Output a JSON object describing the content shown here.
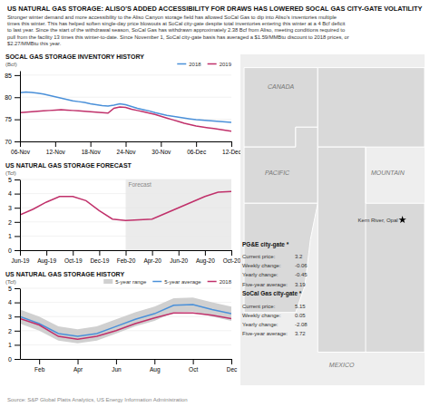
{
  "title": "US NATURAL GAS STORAGE: ALISO'S ADDED ACCESSIBILITY FOR DRAWS HAS LOWERED SOCAL GAS CITY-GATE VOLATILITY",
  "subtitle": [
    "Stronger winter demand and more accessibility to the Aliso Canyon storage field has allowed SoCal Gas to dip into Aliso's inventories multiple",
    "times this winter. This has helped soften single-day price blowouts at SoCal city-gate despite total inventories entering this winter at a 4 Bcf deficit",
    "to last year. Since the start of the withdrawal season, SoCal Gas has withdrawn approximately 2.38 Bcf from Aliso, meeting conditions required to",
    "pull from the facility 13 times this winter-to-date. Since November 1, SoCal city-gate basis has averaged a $1.59/MMBtu discount to 2018 prices, or",
    "$2.27/MMBtu this year."
  ],
  "source": "Source: S&P Global Platts Analytics, US Energy Information Administration",
  "chart_data": [
    {
      "type": "line",
      "title": "SOCAL GAS STORAGE INVENTORY HISTORY",
      "y_label": "(Bcf)",
      "categories": [
        "06-Nov",
        null,
        null,
        null,
        null,
        null,
        "12-Nov",
        null,
        null,
        null,
        null,
        null,
        "18-Nov",
        null,
        null,
        null,
        null,
        null,
        "24-Nov",
        null,
        null,
        null,
        null,
        null,
        "30-Nov",
        null,
        null,
        null,
        null,
        null,
        "06-Dec",
        null,
        null,
        null,
        null,
        null,
        "12-Dec"
      ],
      "series": [
        {
          "name": "2018",
          "color": "#4a90d9",
          "values": [
            81.0,
            81.2,
            81.1,
            80.9,
            80.7,
            80.4,
            80.1,
            79.8,
            79.5,
            79.2,
            79.0,
            78.8,
            78.5,
            78.3,
            78.1,
            78.0,
            78.2,
            78.5,
            78.3,
            77.9,
            77.5,
            77.2,
            76.9,
            76.5,
            76.2,
            75.9,
            75.7,
            75.5,
            75.3,
            75.1,
            74.9,
            74.8,
            74.7,
            74.6,
            74.5,
            74.4,
            74.3
          ]
        },
        {
          "name": "2019",
          "color": "#c0306a",
          "values": [
            76.5,
            76.6,
            76.7,
            76.8,
            76.9,
            77.0,
            77.1,
            77.2,
            77.1,
            77.0,
            76.9,
            76.8,
            76.7,
            76.6,
            76.5,
            76.4,
            77.5,
            77.8,
            77.7,
            77.3,
            77.0,
            76.7,
            76.4,
            76.1,
            75.7,
            75.3,
            74.9,
            74.5,
            74.1,
            73.8,
            73.5,
            73.3,
            73.1,
            72.9,
            72.7,
            72.5,
            72.3
          ]
        }
      ],
      "ylim": [
        70,
        86
      ],
      "yticks": [
        70,
        75,
        80,
        85
      ],
      "grid": true,
      "legend": "upper right"
    },
    {
      "type": "line",
      "title": "US NATURAL GAS STORAGE FORECAST",
      "y_label": "(Tcf)",
      "categories": [
        "Jun-19",
        null,
        "Aug-19",
        null,
        "Oct-19",
        null,
        "Dec-19",
        null,
        "Feb-20",
        null,
        "Apr-20",
        null,
        "Jun-20",
        null,
        "Aug-20",
        null,
        "Oct-20"
      ],
      "values": [
        2.5,
        2.9,
        3.4,
        3.8,
        3.8,
        3.5,
        2.8,
        2.2,
        2.1,
        2.15,
        2.2,
        2.6,
        3.0,
        3.4,
        3.8,
        4.1,
        4.15
      ],
      "color": "#c0306a",
      "ylim": [
        0,
        5
      ],
      "yticks": [
        0,
        1,
        2,
        3,
        4,
        5
      ],
      "grid": true,
      "annotations": [
        {
          "text": "Forecast",
          "from": "Feb-20",
          "color": "#ebebeb"
        }
      ]
    },
    {
      "type": "line",
      "title": "US NATURAL GAS STORAGE HISTORY",
      "y_label": "(Tcf)",
      "categories": [
        null,
        "Feb",
        null,
        "Apr",
        null,
        "Jun",
        null,
        "Aug",
        null,
        "Oct",
        null,
        "Dec"
      ],
      "series": [
        {
          "name": "5-year range",
          "type": "area",
          "color": "#d0d0d0",
          "low": [
            2.5,
            2.0,
            1.3,
            1.1,
            1.3,
            1.8,
            2.3,
            2.7,
            3.3,
            3.35,
            3.0,
            2.7
          ],
          "high": [
            3.5,
            3.0,
            2.3,
            2.1,
            2.3,
            2.8,
            3.3,
            3.7,
            4.3,
            4.35,
            4.0,
            3.7
          ]
        },
        {
          "name": "5-year average",
          "type": "line",
          "color": "#4a90d9",
          "values": [
            3.0,
            2.5,
            1.8,
            1.6,
            1.8,
            2.3,
            2.8,
            3.2,
            3.8,
            3.85,
            3.5,
            3.2
          ]
        },
        {
          "name": "2018",
          "type": "line",
          "color": "#c0306a",
          "values": [
            2.85,
            2.4,
            1.6,
            1.4,
            1.6,
            2.0,
            2.5,
            2.9,
            3.25,
            3.25,
            3.1,
            2.85
          ]
        }
      ],
      "ylim": [
        0,
        5
      ],
      "yticks": [
        0,
        1,
        2,
        3,
        4,
        5
      ],
      "grid": true,
      "legend": "upper right"
    }
  ],
  "annotations": [
    {
      "text": "CANADA"
    },
    {
      "text": "PACIFIC"
    },
    {
      "text": "MOUNTAIN"
    },
    {
      "text": "MEXICO"
    },
    {
      "text": "Kern River, Opal"
    },
    {
      "text": "PG&E city-gate  *",
      "rows": [
        {
          "label": "Current price:",
          "value": 3.2
        },
        {
          "label": "Weekly change:",
          "value": -0.06
        },
        {
          "label": "Yearly change:",
          "value": -0.45
        },
        {
          "label": "Five-year average:",
          "value": 3.19
        }
      ]
    },
    {
      "text": "SoCal Gas city-gate  *",
      "rows": [
        {
          "label": "Current price:",
          "value": 5.15
        },
        {
          "label": "Weekly change:",
          "value": 0.05
        },
        {
          "label": "Yearly change:",
          "value": -2.08
        },
        {
          "label": "Five-year average:",
          "value": 3.72
        }
      ]
    }
  ]
}
